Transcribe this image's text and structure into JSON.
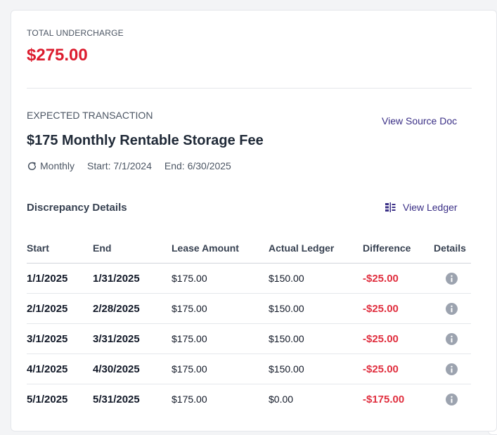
{
  "summary": {
    "total_label": "TOTAL UNDERCHARGE",
    "total_amount": "$275.00",
    "total_color": "#dc1c2e"
  },
  "expected": {
    "section_label": "EXPECTED TRANSACTION",
    "view_source_label": "View Source Doc",
    "title": "$175 Monthly Rentable Storage Fee",
    "recurrence_icon": "refresh-icon",
    "frequency": "Monthly",
    "start": "Start: 7/1/2024",
    "end": "End: 6/30/2025"
  },
  "discrepancy": {
    "title": "Discrepancy Details",
    "view_ledger_icon": "ledger-icon",
    "view_ledger_label": "View Ledger",
    "columns": [
      "Start",
      "End",
      "Lease Amount",
      "Actual Ledger",
      "Difference",
      "Details"
    ],
    "rows": [
      {
        "start": "1/1/2025",
        "end": "1/31/2025",
        "lease": "$175.00",
        "actual": "$150.00",
        "difference": "-$25.00",
        "details_icon": "info-icon"
      },
      {
        "start": "2/1/2025",
        "end": "2/28/2025",
        "lease": "$175.00",
        "actual": "$150.00",
        "difference": "-$25.00",
        "details_icon": "info-icon"
      },
      {
        "start": "3/1/2025",
        "end": "3/31/2025",
        "lease": "$175.00",
        "actual": "$150.00",
        "difference": "-$25.00",
        "details_icon": "info-icon"
      },
      {
        "start": "4/1/2025",
        "end": "4/30/2025",
        "lease": "$175.00",
        "actual": "$150.00",
        "difference": "-$25.00",
        "details_icon": "info-icon"
      },
      {
        "start": "5/1/2025",
        "end": "5/31/2025",
        "lease": "$175.00",
        "actual": "$0.00",
        "difference": "-$175.00",
        "details_icon": "info-icon"
      }
    ]
  },
  "colors": {
    "accent_link": "#3a2f86",
    "negative": "#e02f3f"
  }
}
